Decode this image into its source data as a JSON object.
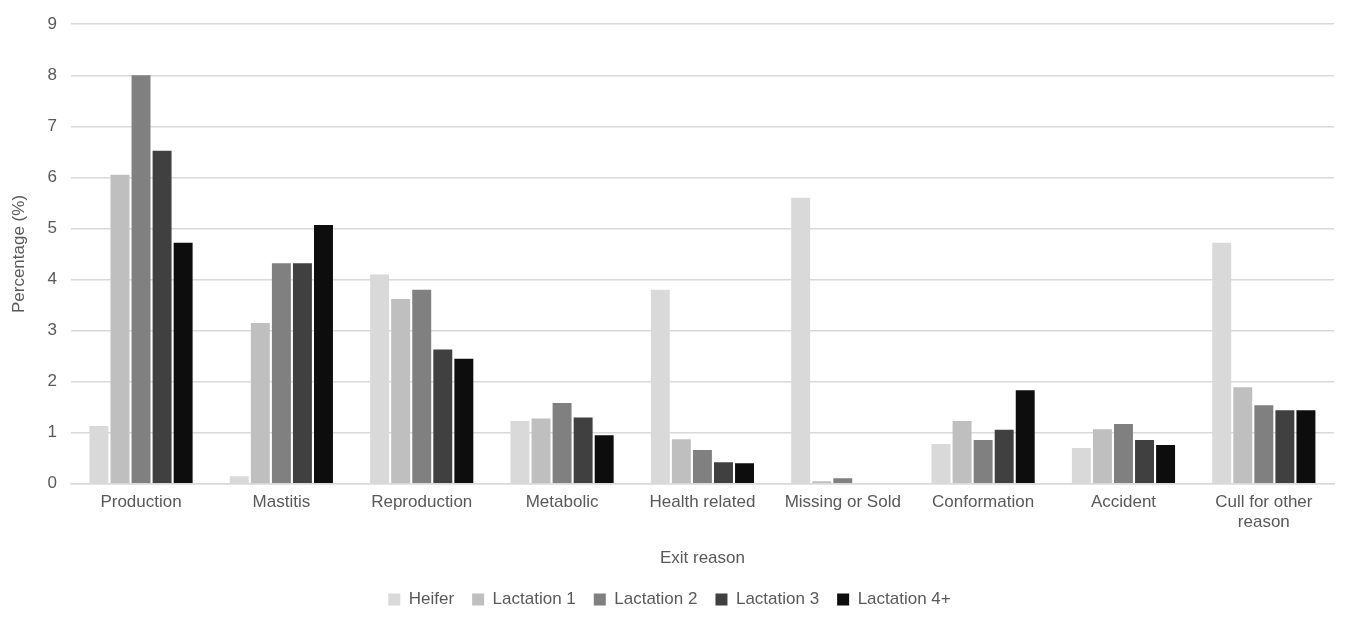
{
  "chart_data": {
    "type": "bar",
    "xlabel": "Exit reason",
    "ylabel": "Percentage (%)",
    "categories": [
      "Production",
      "Mastitis",
      "Reproduction",
      "Metabolic",
      "Health related",
      "Missing or Sold",
      "Conformation",
      "Accident",
      "Cull for other reason"
    ],
    "series": [
      {
        "name": "Heifer",
        "color": "#d9d9d9",
        "values": [
          1.13,
          0.15,
          4.1,
          1.23,
          3.8,
          5.6,
          0.78,
          0.7,
          4.72
        ]
      },
      {
        "name": "Lactation 1",
        "color": "#bfbfbf",
        "values": [
          6.05,
          3.15,
          3.62,
          1.28,
          0.87,
          0.05,
          1.23,
          1.07,
          1.89
        ]
      },
      {
        "name": "Lactation 2",
        "color": "#808080",
        "values": [
          8.0,
          4.32,
          3.8,
          1.58,
          0.66,
          0.11,
          0.86,
          1.17,
          1.54
        ]
      },
      {
        "name": "Lactation 3",
        "color": "#404040",
        "values": [
          6.52,
          4.32,
          2.63,
          1.3,
          0.42,
          null,
          1.06,
          0.86,
          1.44
        ]
      },
      {
        "name": "Lactation 4+",
        "color": "#0d0d0d",
        "values": [
          4.72,
          5.07,
          2.45,
          0.95,
          0.4,
          null,
          1.83,
          0.76,
          1.44
        ]
      }
    ],
    "ylim": [
      0,
      9
    ],
    "yticks": [
      0,
      1,
      2,
      3,
      4,
      5,
      6,
      7,
      8,
      9
    ],
    "grid": "y",
    "legend": "bottom"
  }
}
